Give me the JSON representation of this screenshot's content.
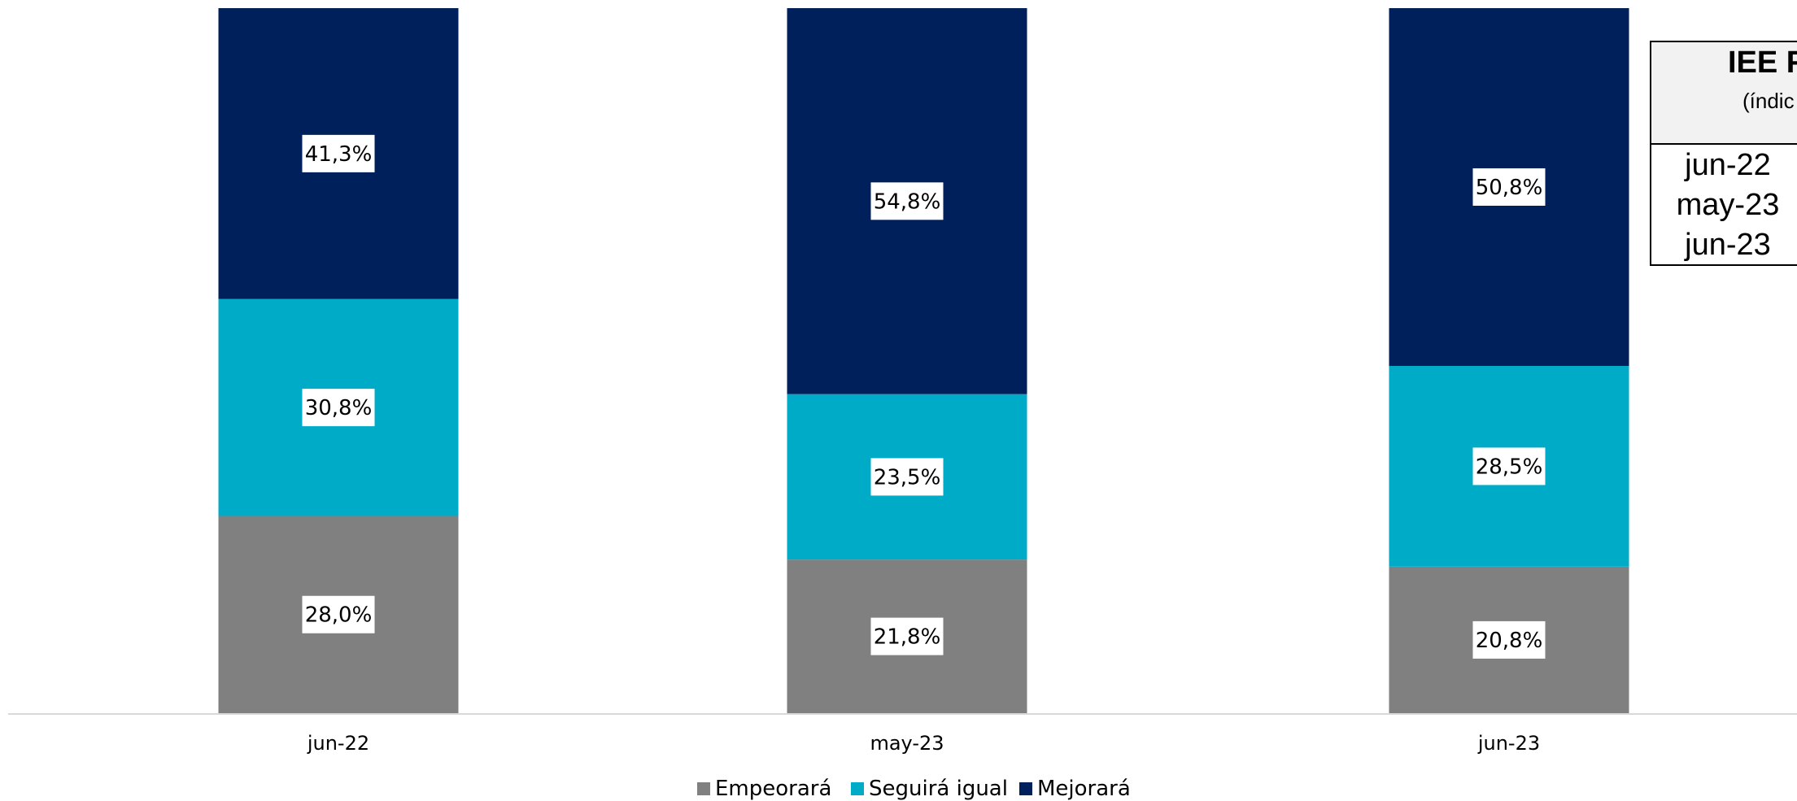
{
  "chart_data": {
    "type": "bar",
    "stacked": true,
    "categories": [
      "jun-22",
      "may-23",
      "jun-23"
    ],
    "series": [
      {
        "name": "Empeorará",
        "values": [
          28.0,
          21.8,
          20.8
        ],
        "labels": [
          "28,0%",
          "21,8%",
          "20,8%"
        ],
        "color": "#808080"
      },
      {
        "name": "Seguirá igual",
        "values": [
          30.8,
          23.5,
          28.5
        ],
        "labels": [
          "30,8%",
          "23,5%",
          "28,5%"
        ],
        "color": "#00abc8"
      },
      {
        "name": "Mejorará",
        "values": [
          41.3,
          54.8,
          50.8
        ],
        "labels": [
          "41,3%",
          "54,8%",
          "50,8%"
        ],
        "color": "#00205b"
      }
    ],
    "ylim": [
      0,
      100
    ],
    "grid": false,
    "legend_position": "bottom",
    "title": "",
    "xlabel": "",
    "ylabel": ""
  },
  "iee_table": {
    "title": "IEE F",
    "subtitle": "(índic",
    "rows": [
      "jun-22",
      "may-23",
      "jun-23"
    ]
  },
  "colors": {
    "axis_line": "#d9d9d9",
    "label_box": "#ffffff"
  }
}
